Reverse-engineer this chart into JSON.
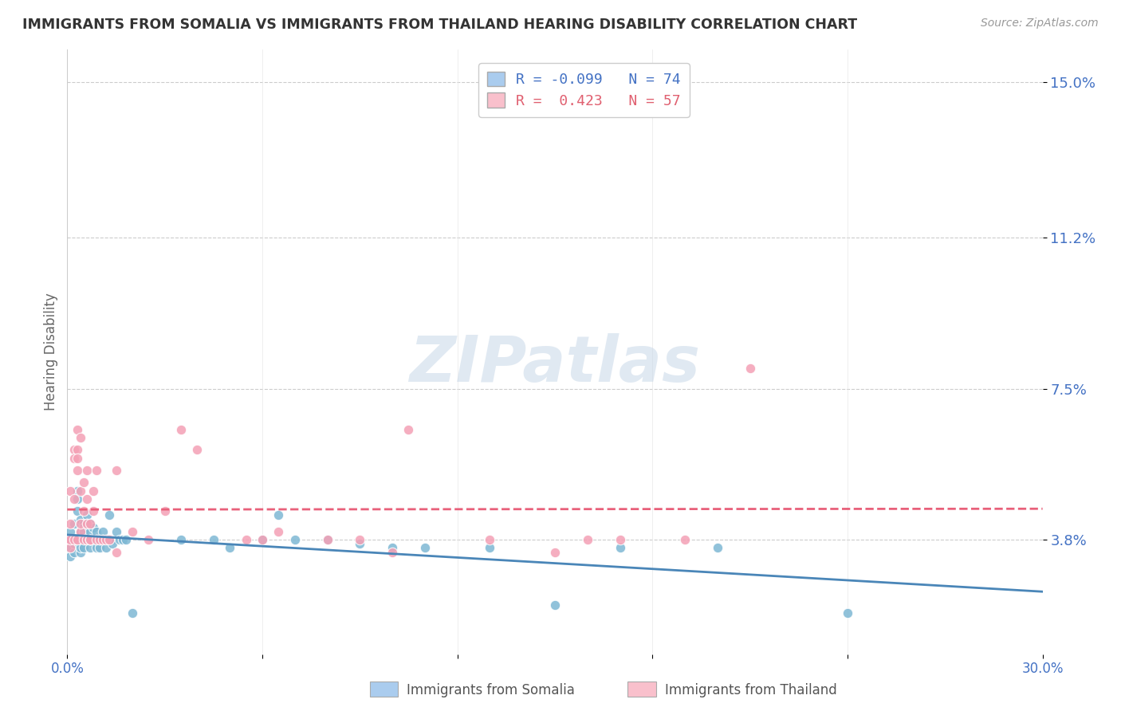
{
  "title": "IMMIGRANTS FROM SOMALIA VS IMMIGRANTS FROM THAILAND HEARING DISABILITY CORRELATION CHART",
  "source": "Source: ZipAtlas.com",
  "ylabel": "Hearing Disability",
  "ytick_labels": [
    "3.8%",
    "7.5%",
    "11.2%",
    "15.0%"
  ],
  "ytick_values": [
    0.038,
    0.075,
    0.112,
    0.15
  ],
  "xtick_labels": [
    "0.0%",
    "",
    "",
    "",
    "",
    "30.0%"
  ],
  "xtick_values": [
    0.0,
    0.06,
    0.12,
    0.18,
    0.24,
    0.3
  ],
  "xmin": 0.0,
  "xmax": 0.3,
  "ymin": 0.01,
  "ymax": 0.158,
  "legend_r1": "R = -0.099",
  "legend_n1": "N = 74",
  "legend_r2": "R =  0.423",
  "legend_n2": "N = 57",
  "somalia_color": "#7eb8d4",
  "thailand_color": "#f4a0b5",
  "somalia_line_color": "#4a86b8",
  "thailand_line_color": "#e8607a",
  "watermark": "ZIPatlas",
  "grid_color": "#cccccc",
  "somalia_legend_color": "#aaccee",
  "thailand_legend_color": "#f9c0cc",
  "somalia_scatter": [
    [
      0.0,
      0.038
    ],
    [
      0.0,
      0.036
    ],
    [
      0.001,
      0.034
    ],
    [
      0.001,
      0.038
    ],
    [
      0.001,
      0.04
    ],
    [
      0.002,
      0.035
    ],
    [
      0.002,
      0.037
    ],
    [
      0.002,
      0.042
    ],
    [
      0.002,
      0.038
    ],
    [
      0.003,
      0.038
    ],
    [
      0.003,
      0.05
    ],
    [
      0.003,
      0.045
    ],
    [
      0.003,
      0.048
    ],
    [
      0.003,
      0.038
    ],
    [
      0.004,
      0.04
    ],
    [
      0.004,
      0.035
    ],
    [
      0.004,
      0.038
    ],
    [
      0.004,
      0.036
    ],
    [
      0.004,
      0.043
    ],
    [
      0.004,
      0.038
    ],
    [
      0.005,
      0.042
    ],
    [
      0.005,
      0.038
    ],
    [
      0.005,
      0.038
    ],
    [
      0.005,
      0.041
    ],
    [
      0.005,
      0.036
    ],
    [
      0.005,
      0.04
    ],
    [
      0.006,
      0.038
    ],
    [
      0.006,
      0.044
    ],
    [
      0.006,
      0.038
    ],
    [
      0.006,
      0.042
    ],
    [
      0.006,
      0.038
    ],
    [
      0.007,
      0.036
    ],
    [
      0.007,
      0.04
    ],
    [
      0.007,
      0.038
    ],
    [
      0.007,
      0.038
    ],
    [
      0.007,
      0.042
    ],
    [
      0.008,
      0.038
    ],
    [
      0.008,
      0.041
    ],
    [
      0.008,
      0.038
    ],
    [
      0.008,
      0.038
    ],
    [
      0.009,
      0.036
    ],
    [
      0.009,
      0.04
    ],
    [
      0.009,
      0.038
    ],
    [
      0.01,
      0.038
    ],
    [
      0.01,
      0.036
    ],
    [
      0.01,
      0.038
    ],
    [
      0.011,
      0.04
    ],
    [
      0.011,
      0.038
    ],
    [
      0.012,
      0.038
    ],
    [
      0.012,
      0.036
    ],
    [
      0.013,
      0.044
    ],
    [
      0.013,
      0.038
    ],
    [
      0.014,
      0.038
    ],
    [
      0.014,
      0.037
    ],
    [
      0.015,
      0.04
    ],
    [
      0.016,
      0.038
    ],
    [
      0.017,
      0.038
    ],
    [
      0.018,
      0.038
    ],
    [
      0.02,
      0.02
    ],
    [
      0.035,
      0.038
    ],
    [
      0.045,
      0.038
    ],
    [
      0.05,
      0.036
    ],
    [
      0.06,
      0.038
    ],
    [
      0.065,
      0.044
    ],
    [
      0.07,
      0.038
    ],
    [
      0.08,
      0.038
    ],
    [
      0.09,
      0.037
    ],
    [
      0.1,
      0.036
    ],
    [
      0.11,
      0.036
    ],
    [
      0.13,
      0.036
    ],
    [
      0.15,
      0.022
    ],
    [
      0.17,
      0.036
    ],
    [
      0.2,
      0.036
    ],
    [
      0.24,
      0.02
    ]
  ],
  "thailand_scatter": [
    [
      0.0,
      0.038
    ],
    [
      0.001,
      0.036
    ],
    [
      0.001,
      0.042
    ],
    [
      0.001,
      0.05
    ],
    [
      0.001,
      0.038
    ],
    [
      0.002,
      0.06
    ],
    [
      0.002,
      0.058
    ],
    [
      0.002,
      0.048
    ],
    [
      0.002,
      0.038
    ],
    [
      0.003,
      0.06
    ],
    [
      0.003,
      0.065
    ],
    [
      0.003,
      0.055
    ],
    [
      0.003,
      0.038
    ],
    [
      0.003,
      0.058
    ],
    [
      0.004,
      0.063
    ],
    [
      0.004,
      0.04
    ],
    [
      0.004,
      0.05
    ],
    [
      0.004,
      0.042
    ],
    [
      0.005,
      0.038
    ],
    [
      0.005,
      0.045
    ],
    [
      0.005,
      0.052
    ],
    [
      0.006,
      0.038
    ],
    [
      0.006,
      0.055
    ],
    [
      0.006,
      0.042
    ],
    [
      0.006,
      0.048
    ],
    [
      0.007,
      0.038
    ],
    [
      0.007,
      0.038
    ],
    [
      0.007,
      0.042
    ],
    [
      0.007,
      0.038
    ],
    [
      0.008,
      0.045
    ],
    [
      0.008,
      0.05
    ],
    [
      0.009,
      0.038
    ],
    [
      0.009,
      0.055
    ],
    [
      0.01,
      0.038
    ],
    [
      0.011,
      0.038
    ],
    [
      0.012,
      0.038
    ],
    [
      0.013,
      0.038
    ],
    [
      0.015,
      0.035
    ],
    [
      0.015,
      0.055
    ],
    [
      0.02,
      0.04
    ],
    [
      0.025,
      0.038
    ],
    [
      0.03,
      0.045
    ],
    [
      0.035,
      0.065
    ],
    [
      0.04,
      0.06
    ],
    [
      0.055,
      0.038
    ],
    [
      0.06,
      0.038
    ],
    [
      0.065,
      0.04
    ],
    [
      0.08,
      0.038
    ],
    [
      0.09,
      0.038
    ],
    [
      0.1,
      0.035
    ],
    [
      0.105,
      0.065
    ],
    [
      0.13,
      0.038
    ],
    [
      0.15,
      0.035
    ],
    [
      0.16,
      0.038
    ],
    [
      0.17,
      0.038
    ],
    [
      0.19,
      0.038
    ],
    [
      0.21,
      0.08
    ]
  ]
}
